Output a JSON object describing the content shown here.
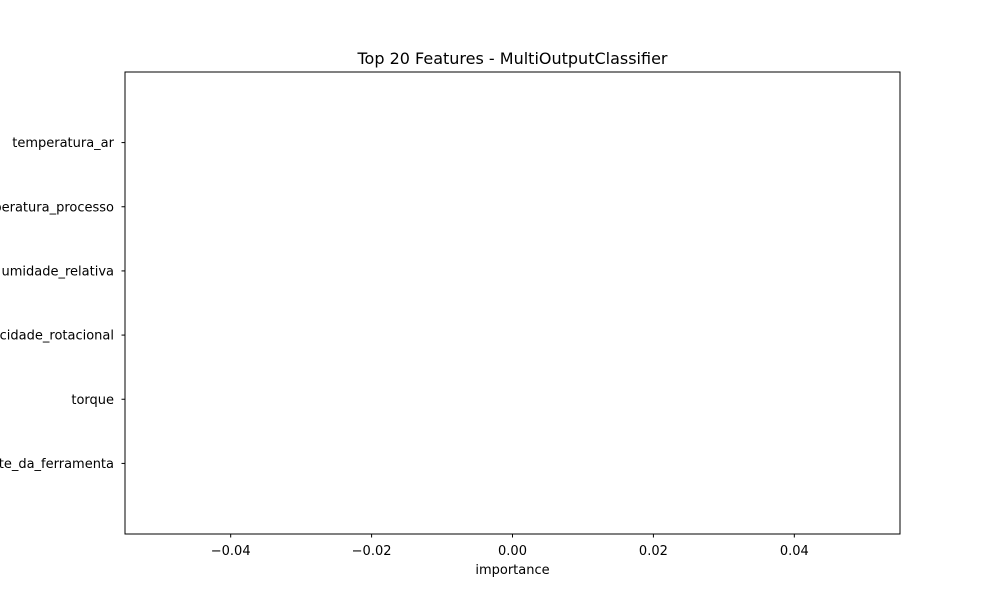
{
  "chart_data": {
    "type": "bar",
    "orientation": "horizontal",
    "title": "Top 20 Features - MultiOutputClassifier",
    "xlabel": "importance",
    "ylabel": "",
    "categories": [
      "temperatura_ar",
      "temperatura_processo",
      "umidade_relativa",
      "velocidade_rotacional",
      "torque",
      "desgaste_da_ferramenta"
    ],
    "values": [
      0,
      0,
      0,
      0,
      0,
      0
    ],
    "xlim": [
      -0.055,
      0.055
    ],
    "xticks": [
      -0.04,
      -0.02,
      0.0,
      0.02,
      0.04
    ],
    "xtick_labels": [
      "−0.04",
      "−0.02",
      "0.00",
      "0.02",
      "0.04"
    ],
    "grid": false,
    "bar_color": "#1f77b4"
  }
}
